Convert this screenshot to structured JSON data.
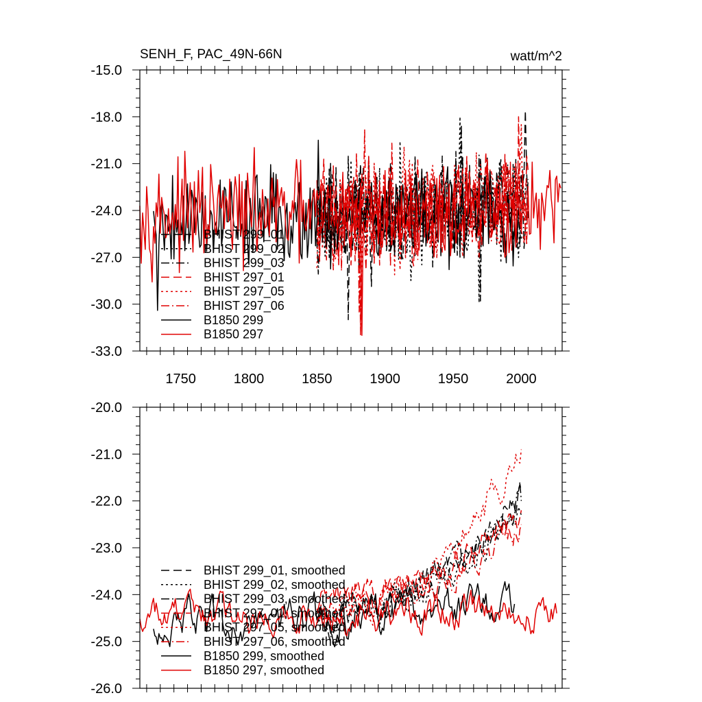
{
  "chart_data": [
    {
      "type": "line",
      "title": "SENH_F, PAC_49N-66N",
      "units": "watt/m^2",
      "xlim": [
        1720,
        2030
      ],
      "ylim": [
        -33.0,
        -15.0
      ],
      "x_ticks": [
        "1750",
        "1800",
        "1850",
        "1900",
        "1950",
        "2000"
      ],
      "y_ticks": [
        "-15.0",
        "-18.0",
        "-21.0",
        "-24.0",
        "-27.0",
        "-30.0",
        "-33.0"
      ],
      "legend": [
        {
          "label": "BHIST 299_01",
          "color": "#000000",
          "dash": "dash"
        },
        {
          "label": "BHIST 299_02",
          "color": "#000000",
          "dash": "dot"
        },
        {
          "label": "BHIST 299_03",
          "color": "#000000",
          "dash": "dashdot"
        },
        {
          "label": "BHIST 297_01",
          "color": "#e00000",
          "dash": "dash"
        },
        {
          "label": "BHIST 297_05",
          "color": "#e00000",
          "dash": "dot"
        },
        {
          "label": "BHIST 297_06",
          "color": "#e00000",
          "dash": "dashdot"
        },
        {
          "label": "B1850 299",
          "color": "#000000",
          "dash": "solid"
        },
        {
          "label": "B1850 297",
          "color": "#e00000",
          "dash": "solid"
        }
      ],
      "series": [
        {
          "name": "BHIST 299_01",
          "x_start": 1850,
          "x_end": 2005,
          "mean": -24.3,
          "amp": 2.0,
          "trend": 0.8,
          "seed": 11,
          "min_point": [
            1873,
            -31.0
          ],
          "max_point": [
            2003,
            -17.6
          ]
        },
        {
          "name": "BHIST 299_02",
          "x_start": 1850,
          "x_end": 2005,
          "mean": -24.3,
          "amp": 2.0,
          "trend": 0.8,
          "seed": 23,
          "min_point": [
            1969,
            -29.9
          ],
          "max_point": [
            1955,
            -18.0
          ]
        },
        {
          "name": "BHIST 299_03",
          "x_start": 1850,
          "x_end": 2005,
          "mean": -24.3,
          "amp": 2.0,
          "trend": 0.8,
          "seed": 37,
          "min_point": [
            1970,
            -29.8
          ],
          "max_point": [
            1956,
            -18.5
          ]
        },
        {
          "name": "BHIST 297_01",
          "x_start": 1850,
          "x_end": 2005,
          "mean": -24.2,
          "amp": 2.0,
          "trend": 0.9,
          "seed": 41,
          "min_point": [
            1882,
            -32.0
          ],
          "max_point": [
            1998,
            -18.0
          ]
        },
        {
          "name": "BHIST 297_05",
          "x_start": 1850,
          "x_end": 2005,
          "mean": -24.2,
          "amp": 2.0,
          "trend": 0.9,
          "seed": 53,
          "min_point": [
            1882,
            -31.3
          ],
          "max_point": [
            2000,
            -18.5
          ]
        },
        {
          "name": "BHIST 297_06",
          "x_start": 1850,
          "x_end": 2005,
          "mean": -24.2,
          "amp": 2.0,
          "trend": 0.9,
          "seed": 67,
          "min_point": [
            1881,
            -30.5
          ],
          "max_point": [
            1885,
            -18.8
          ]
        },
        {
          "name": "B1850 299",
          "x_start": 1730,
          "x_end": 1999,
          "mean": -24.4,
          "amp": 1.8,
          "trend": 0.0,
          "seed": 79,
          "min_point": [
            1733,
            -30.4
          ],
          "max_point": [
            1851,
            -19.5
          ]
        },
        {
          "name": "B1850 297",
          "x_start": 1720,
          "x_end": 2029,
          "mean": -24.2,
          "amp": 1.8,
          "trend": 0.0,
          "seed": 97,
          "min_point": [
            1883,
            -32.0
          ],
          "max_point": [
            1720,
            -23.7
          ]
        }
      ]
    },
    {
      "type": "line",
      "title": "",
      "xlim": [
        1720,
        2030
      ],
      "ylim": [
        -26.0,
        -20.0
      ],
      "y_ticks": [
        "-20.0",
        "-21.0",
        "-22.0",
        "-23.0",
        "-24.0",
        "-25.0",
        "-26.0"
      ],
      "legend": [
        {
          "label": "BHIST 299_01, smoothed",
          "color": "#000000",
          "dash": "dash"
        },
        {
          "label": "BHIST 299_02, smoothed",
          "color": "#000000",
          "dash": "dot"
        },
        {
          "label": "BHIST 299_03, smoothed",
          "color": "#000000",
          "dash": "dashdot"
        },
        {
          "label": "BHIST 297_01, smoothed",
          "color": "#e00000",
          "dash": "dash"
        },
        {
          "label": "BHIST 297_05, smoothed",
          "color": "#e00000",
          "dash": "dot"
        },
        {
          "label": "BHIST 297_06, smoothed",
          "color": "#e00000",
          "dash": "dashdot"
        },
        {
          "label": "B1850 299, smoothed",
          "color": "#000000",
          "dash": "solid"
        },
        {
          "label": "B1850 297, smoothed",
          "color": "#e00000",
          "dash": "solid"
        }
      ],
      "series": [
        {
          "name": "BHIST 299_01, smoothed",
          "x_start": 1850,
          "x_end": 2000,
          "start": -24.3,
          "end": -21.8,
          "amp": 0.45,
          "seed": 5
        },
        {
          "name": "BHIST 299_02, smoothed",
          "x_start": 1850,
          "x_end": 2000,
          "start": -24.4,
          "end": -22.3,
          "amp": 0.45,
          "seed": 15
        },
        {
          "name": "BHIST 299_03, smoothed",
          "x_start": 1850,
          "x_end": 2000,
          "start": -24.5,
          "end": -22.0,
          "amp": 0.45,
          "seed": 25
        },
        {
          "name": "BHIST 297_01, smoothed",
          "x_start": 1850,
          "x_end": 2000,
          "start": -24.2,
          "end": -22.2,
          "amp": 0.45,
          "seed": 35
        },
        {
          "name": "BHIST 297_05, smoothed",
          "x_start": 1850,
          "x_end": 2000,
          "start": -24.4,
          "end": -20.9,
          "amp": 0.45,
          "seed": 45
        },
        {
          "name": "BHIST 297_06, smoothed",
          "x_start": 1850,
          "x_end": 2000,
          "start": -24.2,
          "end": -22.5,
          "amp": 0.45,
          "seed": 55
        },
        {
          "name": "B1850 299, smoothed",
          "x_start": 1730,
          "x_end": 1995,
          "start": -24.6,
          "end": -24.2,
          "amp": 0.55,
          "seed": 65
        },
        {
          "name": "B1850 297, smoothed",
          "x_start": 1720,
          "x_end": 2026,
          "start": -24.4,
          "end": -24.4,
          "amp": 0.5,
          "seed": 75
        }
      ]
    }
  ]
}
